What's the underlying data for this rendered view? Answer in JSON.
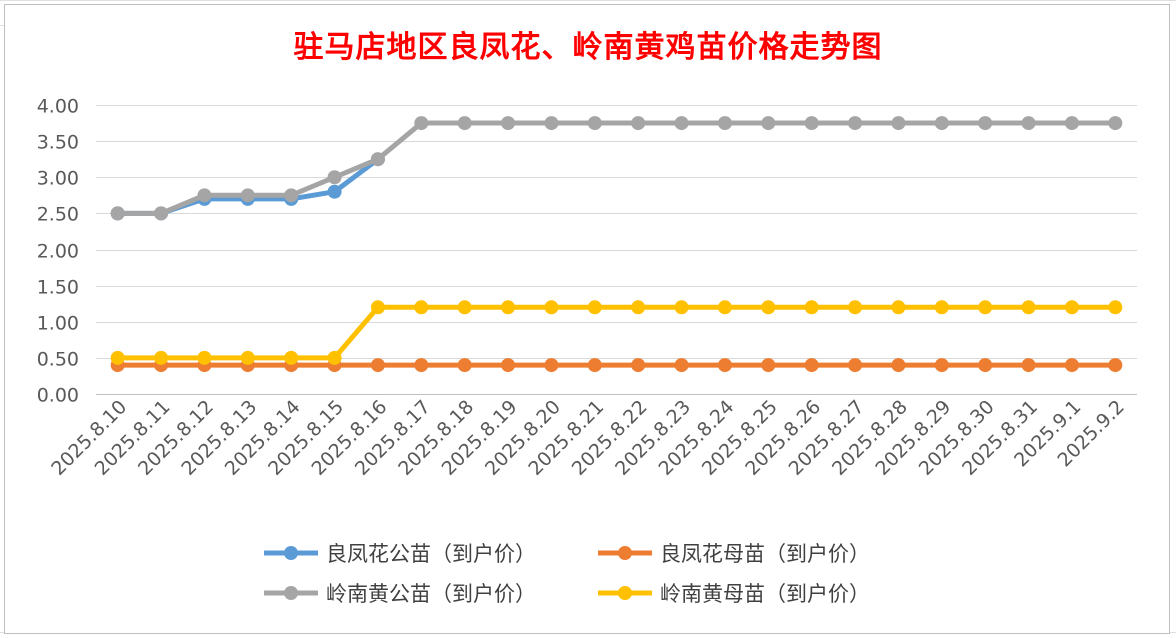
{
  "chart_data": {
    "type": "line",
    "title": "驻马店地区良凤花、岭南黄鸡苗价格走势图",
    "categories": [
      "2025.8.10",
      "2025.8.11",
      "2025.8.12",
      "2025.8.13",
      "2025.8.14",
      "2025.8.15",
      "2025.8.16",
      "2025.8.17",
      "2025.8.18",
      "2025.8.19",
      "2025.8.20",
      "2025.8.21",
      "2025.8.22",
      "2025.8.23",
      "2025.8.24",
      "2025.8.25",
      "2025.8.26",
      "2025.8.27",
      "2025.8.28",
      "2025.8.29",
      "2025.8.30",
      "2025.8.31",
      "2025.9.1",
      "2025.9.2"
    ],
    "yticks": [
      "0.00",
      "0.50",
      "1.00",
      "1.50",
      "2.00",
      "2.50",
      "3.00",
      "3.50",
      "4.00"
    ],
    "ylim": [
      0,
      4
    ],
    "grid": true,
    "legend_position": "bottom",
    "series": [
      {
        "name": "良凤花公苗（到户价）",
        "color": "#5b9bd5",
        "values": [
          2.5,
          2.5,
          2.7,
          2.7,
          2.7,
          2.8,
          3.25,
          null,
          null,
          null,
          null,
          null,
          null,
          null,
          null,
          null,
          null,
          null,
          null,
          null,
          null,
          null,
          null,
          null
        ]
      },
      {
        "name": "良凤花母苗（到户价）",
        "color": "#ed7d31",
        "values": [
          0.4,
          0.4,
          0.4,
          0.4,
          0.4,
          0.4,
          0.4,
          0.4,
          0.4,
          0.4,
          0.4,
          0.4,
          0.4,
          0.4,
          0.4,
          0.4,
          0.4,
          0.4,
          0.4,
          0.4,
          0.4,
          0.4,
          0.4,
          0.4
        ]
      },
      {
        "name": "岭南黄公苗（到户价）",
        "color": "#a5a5a5",
        "values": [
          2.5,
          2.5,
          2.75,
          2.75,
          2.75,
          3.0,
          3.25,
          3.75,
          3.75,
          3.75,
          3.75,
          3.75,
          3.75,
          3.75,
          3.75,
          3.75,
          3.75,
          3.75,
          3.75,
          3.75,
          3.75,
          3.75,
          3.75,
          3.75
        ]
      },
      {
        "name": "岭南黄母苗（到户价）",
        "color": "#ffc000",
        "values": [
          0.5,
          0.5,
          0.5,
          0.5,
          0.5,
          0.5,
          1.2,
          1.2,
          1.2,
          1.2,
          1.2,
          1.2,
          1.2,
          1.2,
          1.2,
          1.2,
          1.2,
          1.2,
          1.2,
          1.2,
          1.2,
          1.2,
          1.2,
          1.2
        ]
      }
    ]
  }
}
